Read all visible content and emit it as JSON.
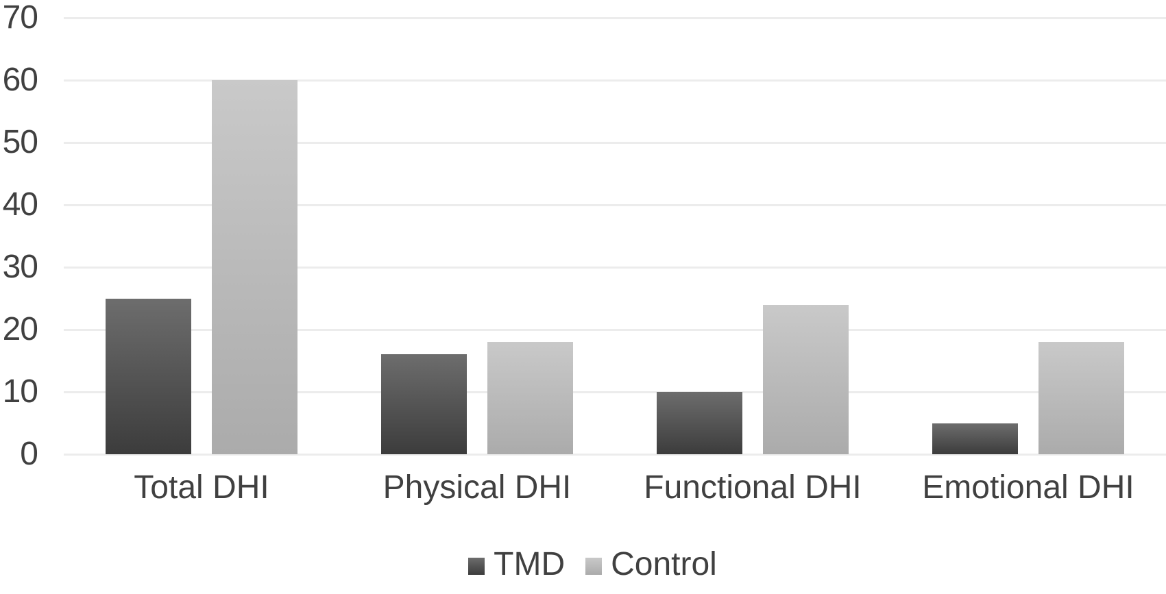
{
  "chart_data": {
    "type": "bar",
    "title": "",
    "xlabel": "",
    "ylabel": "",
    "categories": [
      "Total DHI",
      "Physical DHI",
      "Functional DHI",
      "Emotional DHI"
    ],
    "series": [
      {
        "name": "TMD",
        "values": [
          25,
          16,
          10,
          5
        ],
        "color_top": "#6d6d6d",
        "color_bottom": "#3c3c3c"
      },
      {
        "name": "Control",
        "values": [
          60,
          18,
          24,
          18
        ],
        "color_top": "#c9c9c9",
        "color_bottom": "#ababab"
      }
    ],
    "ylim": [
      0,
      70
    ],
    "yticks": [
      0,
      10,
      20,
      30,
      40,
      50,
      60,
      70
    ],
    "grid": true,
    "legend_position": "bottom-center",
    "colors": {
      "gridline": "#ececec",
      "text": "#404040",
      "background": "#ffffff"
    }
  }
}
